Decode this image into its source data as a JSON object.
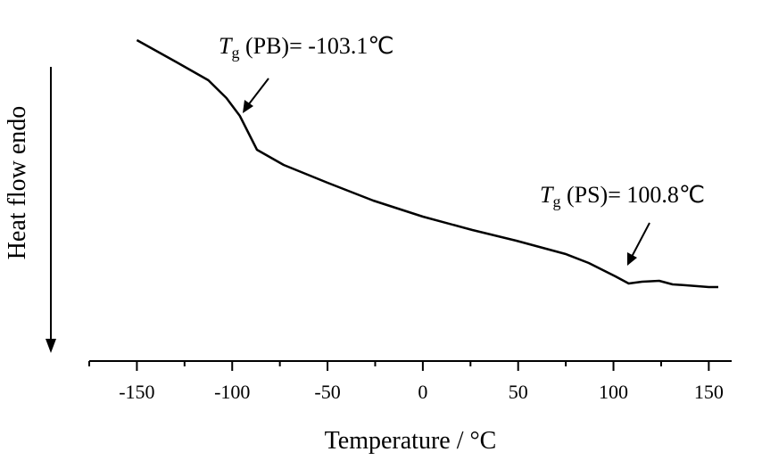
{
  "chart_data": {
    "type": "line",
    "x_label": "Temperature / °C",
    "y_label": "Heat flow endo",
    "xlim": [
      -175,
      162
    ],
    "xticks": [
      -150,
      -100,
      -50,
      0,
      50,
      100,
      150
    ],
    "xminorticks": [
      -175,
      -125,
      -75,
      -25,
      25,
      75,
      125
    ],
    "ylim": [
      0,
      365
    ],
    "color": "#000000",
    "x": [
      -150,
      -129,
      -112.5,
      -103,
      -96,
      -87,
      -73,
      -50,
      -26,
      0,
      26,
      49,
      75,
      87,
      101,
      108,
      115,
      124,
      131,
      138,
      150,
      155
    ],
    "values": [
      360,
      335,
      315,
      295,
      275,
      237,
      220,
      200,
      180,
      162,
      147,
      135,
      120,
      110,
      95,
      87,
      89,
      90,
      86,
      85,
      83,
      83
    ],
    "annotations": [
      {
        "symbol": "T",
        "subscript": "g",
        "text": " (PB)= -103.1℃"
      },
      {
        "symbol": "T",
        "subscript": "g",
        "text": " (PS)= 100.8℃"
      }
    ]
  }
}
